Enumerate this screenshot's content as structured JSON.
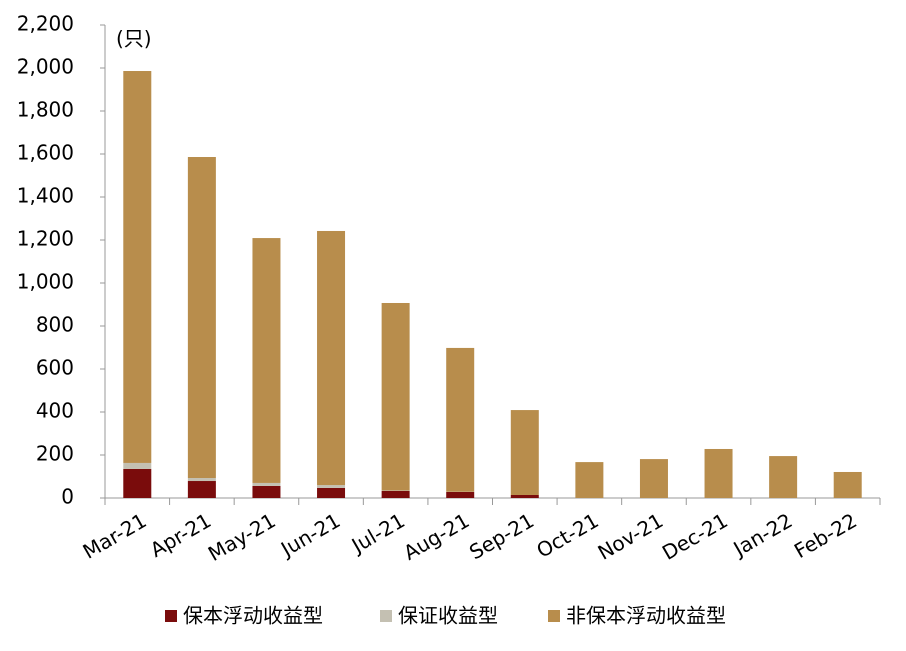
{
  "chart_data": {
    "type": "stacked_bar",
    "annotation": "(只)",
    "categories": [
      "Mar-21",
      "Apr-21",
      "May-21",
      "Jun-21",
      "Jul-21",
      "Aug-21",
      "Sep-21",
      "Oct-21",
      "Nov-21",
      "Dec-21",
      "Jan-22",
      "Feb-22"
    ],
    "series": [
      {
        "name": "保本浮动收益型",
        "color": "#7a0c0c",
        "values": [
          135,
          79,
          56,
          47,
          33,
          28,
          14,
          0,
          0,
          0,
          0,
          0
        ]
      },
      {
        "name": "保证收益型",
        "color": "#c4c0b2",
        "values": [
          28,
          14,
          14,
          13,
          2,
          1,
          0,
          0,
          0,
          0,
          0,
          0
        ]
      },
      {
        "name": "非保本浮动收益型",
        "color": "#b88d4c",
        "values": [
          1823,
          1493,
          1139,
          1182,
          872,
          669,
          395,
          167,
          181,
          228,
          195,
          121
        ]
      }
    ],
    "ylim": [
      0,
      2200
    ],
    "yticks": [
      0,
      200,
      400,
      600,
      800,
      {
        "value": 1000,
        "label": "1,000"
      },
      {
        "value": 1200,
        "label": "1,200"
      },
      {
        "value": 1400,
        "label": "1,400"
      },
      {
        "value": 1600,
        "label": "1,600"
      },
      {
        "value": 1800,
        "label": "1,800"
      },
      {
        "value": 2000,
        "label": "2,000"
      },
      {
        "value": 2200,
        "label": "2,200"
      }
    ],
    "legend": "bottom"
  }
}
